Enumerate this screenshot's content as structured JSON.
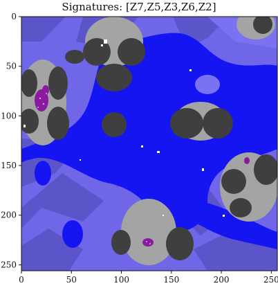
{
  "figure": {
    "title": "Signatures:  [Z7,Z5,Z3,Z6,Z2]"
  },
  "axes": {
    "x_ticks": [
      "0",
      "50",
      "100",
      "150",
      "200",
      "250"
    ],
    "y_ticks": [
      "0",
      "50",
      "100",
      "150",
      "200",
      "250"
    ],
    "x_tick_values": [
      0,
      50,
      100,
      150,
      200,
      250
    ],
    "y_tick_values": [
      0,
      50,
      100,
      150,
      200,
      250
    ],
    "xlim": [
      0,
      256
    ],
    "ylim": [
      256,
      0
    ]
  },
  "colors": {
    "background_violet": "#6f66e8",
    "violet_stripe": "#5b54c6",
    "blue_region": "#1515f2",
    "grey_light": "#a4a4a4",
    "grey_dark": "#3f3f3f",
    "speckle_purple": "#8a1b9e",
    "speckle_white": "#ffffff"
  }
}
